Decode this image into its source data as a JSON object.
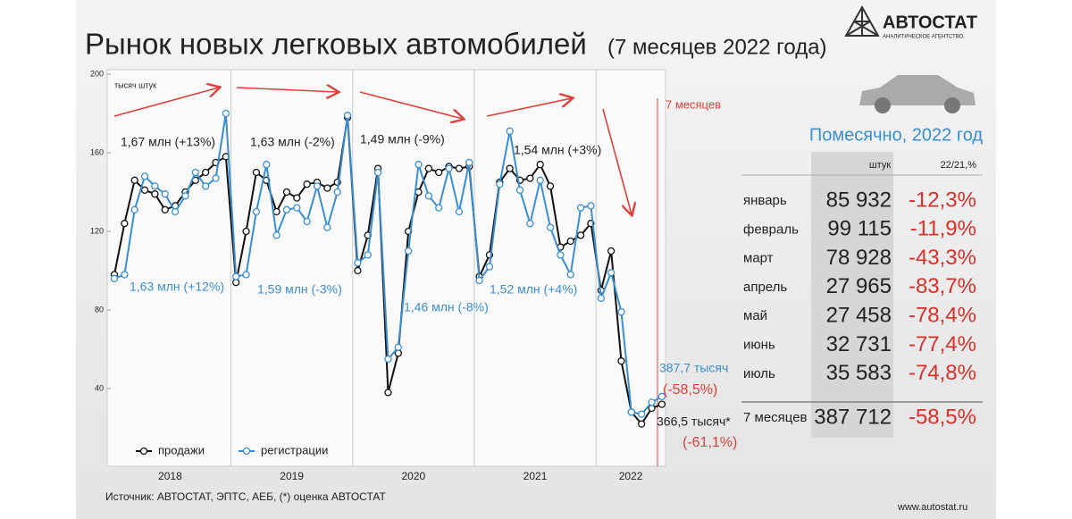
{
  "title": "Рынок новых легковых автомобилей",
  "subtitle": "(7 месяцев 2022 года)",
  "logo": {
    "name": "АВТОСТАТ",
    "tagline": "АНАЛИТИЧЕСКОЕ АГЕНТСТВО"
  },
  "source": "Источник: АВТОСТАТ, ЭПТС, АЕБ, (*) оценка АВТОСТАТ",
  "website": "www.autostat.ru",
  "chart_data": {
    "type": "line",
    "y_label": "тысяч штук",
    "categories": [
      null,
      null,
      null,
      null,
      null,
      null,
      null,
      null,
      null,
      null,
      null,
      null,
      null,
      null,
      null,
      null,
      null,
      null,
      null,
      null,
      null,
      null,
      null,
      null,
      null,
      null,
      null,
      null,
      null,
      null,
      null,
      null,
      null,
      null,
      null,
      null,
      null,
      null,
      null,
      null,
      null,
      null,
      null,
      null,
      null,
      null,
      null,
      null,
      null,
      null,
      null,
      null,
      null,
      null,
      null
    ],
    "years": [
      "2018",
      "2019",
      "2020",
      "2021",
      "2022"
    ],
    "ylim": [
      0,
      200
    ],
    "yticks": [
      40,
      80,
      120,
      160,
      200
    ],
    "series": [
      {
        "name": "продажи",
        "color": "#111111",
        "values": [
          98,
          124,
          146,
          141,
          139,
          131,
          133,
          140,
          146,
          150,
          155,
          158,
          94,
          120,
          150,
          146,
          130,
          140,
          137,
          144,
          145,
          142,
          145,
          178,
          100,
          118,
          152,
          38,
          58,
          120,
          140,
          152,
          150,
          153,
          152,
          153,
          97,
          108,
          145,
          152,
          146,
          147,
          154,
          143,
          112,
          115,
          118,
          124,
          90,
          110,
          54,
          28,
          22,
          30,
          32
        ]
      },
      {
        "name": "регистрации",
        "color": "#3a8fd0",
        "values": [
          96,
          98,
          131,
          148,
          143,
          139,
          130,
          138,
          150,
          143,
          147,
          180,
          97,
          98,
          130,
          154,
          118,
          131,
          132,
          125,
          143,
          122,
          140,
          179,
          104,
          108,
          150,
          55,
          61,
          110,
          154,
          138,
          132,
          152,
          130,
          155,
          95,
          102,
          144,
          171,
          141,
          124,
          146,
          122,
          108,
          98,
          132,
          133,
          86,
          99,
          79,
          28,
          27,
          33,
          36
        ]
      }
    ],
    "annotations": [
      "1,67 млн (+13%)",
      "1,63 млн (-2%)",
      "1,49 млн (-9%)",
      "1,54 млн (+3%)",
      "1,63 млн (+12%)",
      "1,59 млн (-3%)",
      "1,46 млн (-8%)",
      "1,52 млн (+4%)",
      "387,7 тысяч",
      "(-58,5%)",
      "366,5 тысяч*",
      "(-61,1%)",
      "7 месяцев"
    ]
  },
  "table": {
    "title": "Помесячно, 2022 год",
    "columns": [
      "штук",
      "22/21,%"
    ],
    "rows": [
      [
        "январь",
        "85 932",
        "-12,3%"
      ],
      [
        "февраль",
        "99 115",
        "-11,9%"
      ],
      [
        "март",
        "78 928",
        "-43,3%"
      ],
      [
        "апрель",
        "27 965",
        "-83,7%"
      ],
      [
        "май",
        "27 458",
        "-78,4%"
      ],
      [
        "июнь",
        "32 731",
        "-77,4%"
      ],
      [
        "июль",
        "35 583",
        "-74,8%"
      ]
    ],
    "total": [
      "7 месяцев",
      "387 712",
      "-58,5%"
    ]
  }
}
